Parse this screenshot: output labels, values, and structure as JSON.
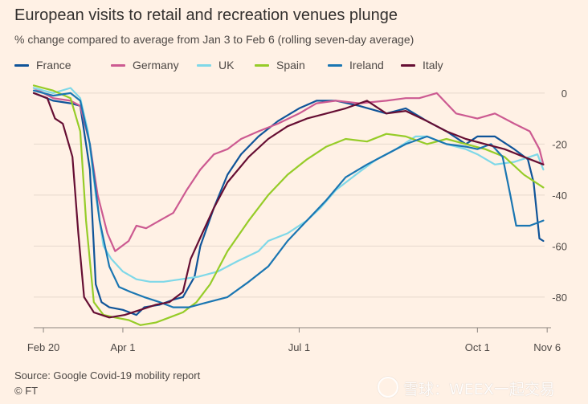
{
  "header": {
    "title": "European visits to retail and recreation venues plunge",
    "subtitle": "% change compared to average from Jan 3 to Feb 6 (rolling seven-day average)"
  },
  "footer": {
    "source": "Source: Google Covid-19 mobility report",
    "credit": "© FT"
  },
  "watermark": "雪球：WEEX一起交易",
  "chart_data": {
    "type": "line",
    "title": "European visits to retail and recreation venues plunge",
    "subtitle": "% change compared to average from Jan 3 to Feb 6 (rolling seven-day average)",
    "x_unit": "date (2020)",
    "xlim": [
      "2020-02-15",
      "2020-11-08"
    ],
    "ylim": [
      -92,
      5
    ],
    "y_ticks": [
      0,
      -20,
      -40,
      -60,
      -80
    ],
    "x_ticks": [
      {
        "date": "2020-02-20",
        "label": "Feb 20"
      },
      {
        "date": "2020-04-01",
        "label": "Apr 1"
      },
      {
        "date": "2020-07-01",
        "label": "Jul 1"
      },
      {
        "date": "2020-10-01",
        "label": "Oct 1"
      },
      {
        "date": "2020-11-06",
        "label": "Nov 6"
      }
    ],
    "grid": "horizontal",
    "legend_position": "top",
    "series": [
      {
        "name": "France",
        "color": "#0f5499",
        "points": [
          [
            "2020-02-15",
            0
          ],
          [
            "2020-02-25",
            -3
          ],
          [
            "2020-03-05",
            -4
          ],
          [
            "2020-03-10",
            -5
          ],
          [
            "2020-03-15",
            -30
          ],
          [
            "2020-03-18",
            -75
          ],
          [
            "2020-03-21",
            -82
          ],
          [
            "2020-03-25",
            -84
          ],
          [
            "2020-04-01",
            -85
          ],
          [
            "2020-04-08",
            -87
          ],
          [
            "2020-04-12",
            -84
          ],
          [
            "2020-04-20",
            -83
          ],
          [
            "2020-04-27",
            -81
          ],
          [
            "2020-05-02",
            -80
          ],
          [
            "2020-05-08",
            -72
          ],
          [
            "2020-05-11",
            -60
          ],
          [
            "2020-05-18",
            -45
          ],
          [
            "2020-05-25",
            -32
          ],
          [
            "2020-06-01",
            -24
          ],
          [
            "2020-06-10",
            -17
          ],
          [
            "2020-06-20",
            -11
          ],
          [
            "2020-07-01",
            -6
          ],
          [
            "2020-07-10",
            -3
          ],
          [
            "2020-07-20",
            -3
          ],
          [
            "2020-08-01",
            -5
          ],
          [
            "2020-08-15",
            -8
          ],
          [
            "2020-08-25",
            -6
          ],
          [
            "2020-09-05",
            -11
          ],
          [
            "2020-09-15",
            -15
          ],
          [
            "2020-09-25",
            -20
          ],
          [
            "2020-10-01",
            -17
          ],
          [
            "2020-10-10",
            -17
          ],
          [
            "2020-10-20",
            -22
          ],
          [
            "2020-10-27",
            -26
          ],
          [
            "2020-10-30",
            -35
          ],
          [
            "2020-11-02",
            -57
          ],
          [
            "2020-11-04",
            -58
          ]
        ]
      },
      {
        "name": "Germany",
        "color": "#cc5a91",
        "points": [
          [
            "2020-02-15",
            2
          ],
          [
            "2020-02-25",
            -2
          ],
          [
            "2020-03-05",
            -3
          ],
          [
            "2020-03-10",
            -5
          ],
          [
            "2020-03-15",
            -20
          ],
          [
            "2020-03-19",
            -40
          ],
          [
            "2020-03-24",
            -55
          ],
          [
            "2020-03-28",
            -62
          ],
          [
            "2020-04-04",
            -58
          ],
          [
            "2020-04-08",
            -52
          ],
          [
            "2020-04-13",
            -53
          ],
          [
            "2020-04-20",
            -50
          ],
          [
            "2020-04-27",
            -47
          ],
          [
            "2020-05-04",
            -38
          ],
          [
            "2020-05-11",
            -30
          ],
          [
            "2020-05-18",
            -24
          ],
          [
            "2020-05-25",
            -22
          ],
          [
            "2020-06-01",
            -18
          ],
          [
            "2020-06-10",
            -15
          ],
          [
            "2020-06-20",
            -12
          ],
          [
            "2020-07-01",
            -8
          ],
          [
            "2020-07-10",
            -4
          ],
          [
            "2020-07-20",
            -3
          ],
          [
            "2020-08-01",
            -4
          ],
          [
            "2020-08-15",
            -3
          ],
          [
            "2020-08-25",
            -2
          ],
          [
            "2020-09-01",
            -2
          ],
          [
            "2020-09-10",
            0
          ],
          [
            "2020-09-20",
            -8
          ],
          [
            "2020-10-01",
            -10
          ],
          [
            "2020-10-10",
            -8
          ],
          [
            "2020-10-20",
            -12
          ],
          [
            "2020-10-28",
            -15
          ],
          [
            "2020-11-02",
            -22
          ],
          [
            "2020-11-04",
            -28
          ]
        ]
      },
      {
        "name": "UK",
        "color": "#7fd8e8",
        "points": [
          [
            "2020-02-15",
            2
          ],
          [
            "2020-02-25",
            0
          ],
          [
            "2020-03-05",
            2
          ],
          [
            "2020-03-10",
            -2
          ],
          [
            "2020-03-14",
            -15
          ],
          [
            "2020-03-18",
            -40
          ],
          [
            "2020-03-22",
            -60
          ],
          [
            "2020-03-26",
            -65
          ],
          [
            "2020-04-01",
            -70
          ],
          [
            "2020-04-08",
            -73
          ],
          [
            "2020-04-15",
            -74
          ],
          [
            "2020-04-22",
            -74
          ],
          [
            "2020-05-01",
            -73
          ],
          [
            "2020-05-10",
            -72
          ],
          [
            "2020-05-20",
            -70
          ],
          [
            "2020-05-30",
            -66
          ],
          [
            "2020-06-10",
            -62
          ],
          [
            "2020-06-15",
            -58
          ],
          [
            "2020-06-25",
            -55
          ],
          [
            "2020-07-05",
            -50
          ],
          [
            "2020-07-12",
            -45
          ],
          [
            "2020-07-20",
            -38
          ],
          [
            "2020-08-01",
            -31
          ],
          [
            "2020-08-10",
            -26
          ],
          [
            "2020-08-20",
            -22
          ],
          [
            "2020-08-30",
            -17
          ],
          [
            "2020-09-05",
            -17
          ],
          [
            "2020-09-15",
            -20
          ],
          [
            "2020-09-25",
            -22
          ],
          [
            "2020-10-01",
            -24
          ],
          [
            "2020-10-10",
            -28
          ],
          [
            "2020-10-20",
            -27
          ],
          [
            "2020-10-28",
            -25
          ],
          [
            "2020-11-01",
            -24
          ],
          [
            "2020-11-04",
            -30
          ]
        ]
      },
      {
        "name": "Spain",
        "color": "#96cc28",
        "points": [
          [
            "2020-02-15",
            3
          ],
          [
            "2020-02-25",
            1
          ],
          [
            "2020-03-05",
            -2
          ],
          [
            "2020-03-10",
            -15
          ],
          [
            "2020-03-13",
            -50
          ],
          [
            "2020-03-17",
            -82
          ],
          [
            "2020-03-22",
            -87
          ],
          [
            "2020-03-28",
            -88
          ],
          [
            "2020-04-04",
            -89
          ],
          [
            "2020-04-10",
            -91
          ],
          [
            "2020-04-18",
            -90
          ],
          [
            "2020-04-25",
            -88
          ],
          [
            "2020-05-02",
            -86
          ],
          [
            "2020-05-09",
            -82
          ],
          [
            "2020-05-16",
            -75
          ],
          [
            "2020-05-25",
            -62
          ],
          [
            "2020-06-05",
            -50
          ],
          [
            "2020-06-15",
            -40
          ],
          [
            "2020-06-25",
            -32
          ],
          [
            "2020-07-05",
            -26
          ],
          [
            "2020-07-15",
            -21
          ],
          [
            "2020-07-25",
            -18
          ],
          [
            "2020-08-05",
            -19
          ],
          [
            "2020-08-15",
            -16
          ],
          [
            "2020-08-25",
            -17
          ],
          [
            "2020-09-05",
            -20
          ],
          [
            "2020-09-15",
            -18
          ],
          [
            "2020-09-25",
            -20
          ],
          [
            "2020-10-05",
            -22
          ],
          [
            "2020-10-15",
            -25
          ],
          [
            "2020-10-25",
            -32
          ],
          [
            "2020-11-04",
            -37
          ]
        ]
      },
      {
        "name": "Ireland",
        "color": "#1a76b2",
        "points": [
          [
            "2020-02-15",
            1
          ],
          [
            "2020-02-25",
            -1
          ],
          [
            "2020-03-05",
            0
          ],
          [
            "2020-03-10",
            -3
          ],
          [
            "2020-03-15",
            -20
          ],
          [
            "2020-03-20",
            -50
          ],
          [
            "2020-03-25",
            -68
          ],
          [
            "2020-03-30",
            -76
          ],
          [
            "2020-04-05",
            -78
          ],
          [
            "2020-04-12",
            -80
          ],
          [
            "2020-04-20",
            -82
          ],
          [
            "2020-04-27",
            -84
          ],
          [
            "2020-05-05",
            -84
          ],
          [
            "2020-05-15",
            -82
          ],
          [
            "2020-05-25",
            -80
          ],
          [
            "2020-06-05",
            -74
          ],
          [
            "2020-06-15",
            -68
          ],
          [
            "2020-06-25",
            -58
          ],
          [
            "2020-07-05",
            -50
          ],
          [
            "2020-07-15",
            -42
          ],
          [
            "2020-07-25",
            -33
          ],
          [
            "2020-08-05",
            -28
          ],
          [
            "2020-08-15",
            -24
          ],
          [
            "2020-08-25",
            -20
          ],
          [
            "2020-09-05",
            -17
          ],
          [
            "2020-09-15",
            -20
          ],
          [
            "2020-09-25",
            -21
          ],
          [
            "2020-10-01",
            -22
          ],
          [
            "2020-10-08",
            -20
          ],
          [
            "2020-10-14",
            -25
          ],
          [
            "2020-10-18",
            -40
          ],
          [
            "2020-10-21",
            -52
          ],
          [
            "2020-10-28",
            -52
          ],
          [
            "2020-11-04",
            -50
          ]
        ]
      },
      {
        "name": "Italy",
        "color": "#660e33",
        "points": [
          [
            "2020-02-15",
            0
          ],
          [
            "2020-02-22",
            -2
          ],
          [
            "2020-02-26",
            -10
          ],
          [
            "2020-03-01",
            -12
          ],
          [
            "2020-03-06",
            -25
          ],
          [
            "2020-03-09",
            -55
          ],
          [
            "2020-03-12",
            -80
          ],
          [
            "2020-03-17",
            -86
          ],
          [
            "2020-03-25",
            -88
          ],
          [
            "2020-04-02",
            -87
          ],
          [
            "2020-04-10",
            -85
          ],
          [
            "2020-04-18",
            -83
          ],
          [
            "2020-04-25",
            -82
          ],
          [
            "2020-05-02",
            -78
          ],
          [
            "2020-05-06",
            -65
          ],
          [
            "2020-05-12",
            -55
          ],
          [
            "2020-05-18",
            -45
          ],
          [
            "2020-05-25",
            -35
          ],
          [
            "2020-06-05",
            -25
          ],
          [
            "2020-06-15",
            -18
          ],
          [
            "2020-06-25",
            -13
          ],
          [
            "2020-07-05",
            -10
          ],
          [
            "2020-07-15",
            -8
          ],
          [
            "2020-07-25",
            -6
          ],
          [
            "2020-08-05",
            -3
          ],
          [
            "2020-08-15",
            -8
          ],
          [
            "2020-08-25",
            -7
          ],
          [
            "2020-09-05",
            -11
          ],
          [
            "2020-09-15",
            -15
          ],
          [
            "2020-09-25",
            -18
          ],
          [
            "2020-10-05",
            -20
          ],
          [
            "2020-10-15",
            -22
          ],
          [
            "2020-10-25",
            -25
          ],
          [
            "2020-11-04",
            -28
          ]
        ]
      }
    ]
  }
}
